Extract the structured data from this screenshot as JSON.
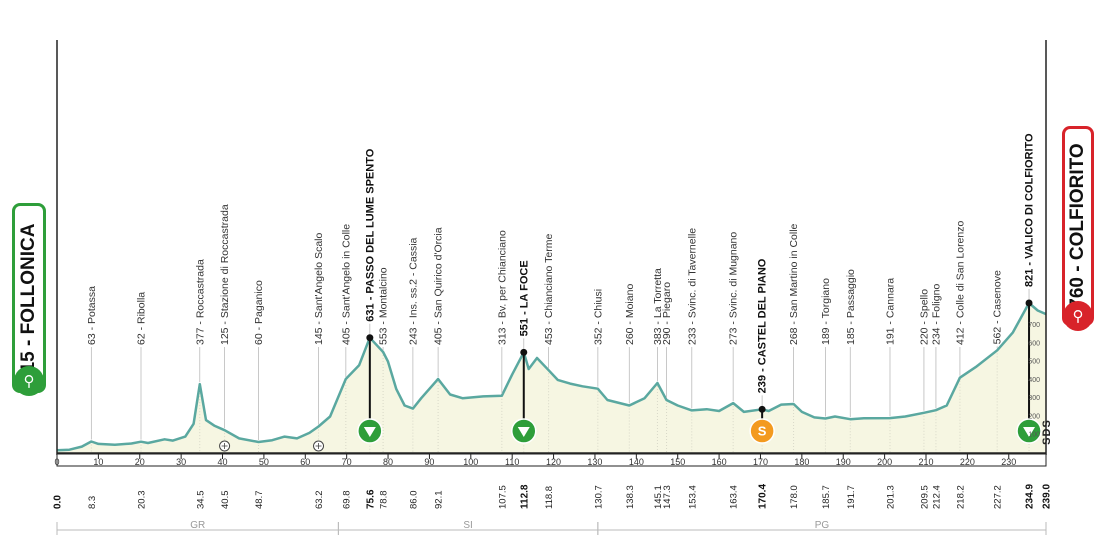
{
  "start": {
    "name": "15 - FOLLONICA",
    "color": "#2e9e3a"
  },
  "finish": {
    "name": "760 - COLFIORITO",
    "color": "#d8232a"
  },
  "profile_color": "#5aa8a0",
  "fill_color": "#f6f6e2",
  "region_labels": [
    "GR",
    "SI",
    "PG"
  ],
  "region_bounds_km": [
    0,
    68,
    130.7,
    239
  ],
  "scale_labels": [
    "700",
    "600",
    "500",
    "400",
    "300",
    "200",
    "100"
  ],
  "sds_label": "SDS",
  "km_ticks": [
    0,
    10,
    20,
    30,
    40,
    50,
    60,
    70,
    80,
    90,
    100,
    110,
    120,
    130,
    140,
    150,
    160,
    170,
    180,
    190,
    200,
    210,
    220,
    230
  ],
  "waypoints": [
    {
      "km": "0.0",
      "label": "",
      "bold": true
    },
    {
      "km": "8.3",
      "label": "63 - Potassa"
    },
    {
      "km": "20.3",
      "label": "62 - Ribolla"
    },
    {
      "km": "34.5",
      "label": "377 - Roccastrada"
    },
    {
      "km": "40.5",
      "label": "125 - Stazione di Roccastrada"
    },
    {
      "km": "48.7",
      "label": "60 - Paganico"
    },
    {
      "km": "63.2",
      "label": "145 - Sant'Angelo Scalo"
    },
    {
      "km": "69.8",
      "label": "405 - Sant'Angelo in Colle"
    },
    {
      "km": "75.6",
      "label": "631 - PASSO DEL LUME SPENTO",
      "bold": true,
      "marker": "gpm"
    },
    {
      "km": "78.8",
      "label": "553 - Montalcino"
    },
    {
      "km": "86.0",
      "label": "243 - Ins. ss.2 - Cassia"
    },
    {
      "km": "92.1",
      "label": "405 - San Quirico d'Orcia"
    },
    {
      "km": "107.5",
      "label": "313 - Bv. per Chianciano"
    },
    {
      "km": "112.8",
      "label": "551 - LA FOCE",
      "bold": true,
      "marker": "gpm"
    },
    {
      "km": "118.8",
      "label": "453 - Chianciano Terme"
    },
    {
      "km": "130.7",
      "label": "352 - Chiusi"
    },
    {
      "km": "138.3",
      "label": "260 - Moiano"
    },
    {
      "km": "145.1",
      "label": "383 - La Torretta"
    },
    {
      "km": "147.3",
      "label": "290 - Piegaro"
    },
    {
      "km": "153.4",
      "label": "233 - Svinc. di Tavernelle"
    },
    {
      "km": "163.4",
      "label": "273 - Svinc. di Mugnano"
    },
    {
      "km": "170.4",
      "label": "239 - CASTEL DEL PIANO",
      "bold": true,
      "marker": "sprint"
    },
    {
      "km": "178.0",
      "label": "268 - San Martino in Colle"
    },
    {
      "km": "185.7",
      "label": "189 - Torgiano"
    },
    {
      "km": "191.7",
      "label": "185 - Passaggio"
    },
    {
      "km": "201.3",
      "label": "191 - Cannara"
    },
    {
      "km": "209.5",
      "label": "220 - Spello"
    },
    {
      "km": "212.4",
      "label": "234 - Foligno"
    },
    {
      "km": "218.2",
      "label": "412 - Colle di San Lorenzo"
    },
    {
      "km": "227.2",
      "label": "562 - Casenove"
    },
    {
      "km": "234.9",
      "label": "821 - VALICO DI COLFIORITO",
      "bold": true,
      "marker": "gpm"
    },
    {
      "km": "239.0",
      "label": "",
      "bold": true
    }
  ],
  "elevation_profile": [
    [
      0,
      15
    ],
    [
      3,
      18
    ],
    [
      6,
      35
    ],
    [
      8.3,
      63
    ],
    [
      10,
      50
    ],
    [
      14,
      45
    ],
    [
      18,
      52
    ],
    [
      20.3,
      62
    ],
    [
      22,
      55
    ],
    [
      26,
      75
    ],
    [
      28,
      68
    ],
    [
      31,
      90
    ],
    [
      33,
      160
    ],
    [
      34.5,
      377
    ],
    [
      36,
      180
    ],
    [
      38,
      150
    ],
    [
      40.5,
      125
    ],
    [
      44,
      80
    ],
    [
      48.7,
      60
    ],
    [
      52,
      70
    ],
    [
      55,
      90
    ],
    [
      58,
      80
    ],
    [
      61,
      110
    ],
    [
      63.2,
      145
    ],
    [
      66,
      200
    ],
    [
      69.8,
      405
    ],
    [
      73,
      480
    ],
    [
      75.6,
      631
    ],
    [
      78.8,
      553
    ],
    [
      80,
      500
    ],
    [
      82,
      350
    ],
    [
      84,
      260
    ],
    [
      86,
      243
    ],
    [
      88,
      300
    ],
    [
      92.1,
      405
    ],
    [
      95,
      320
    ],
    [
      98,
      300
    ],
    [
      103,
      310
    ],
    [
      107.5,
      313
    ],
    [
      110,
      430
    ],
    [
      112.8,
      551
    ],
    [
      114,
      460
    ],
    [
      116,
      520
    ],
    [
      118.8,
      453
    ],
    [
      121,
      400
    ],
    [
      124,
      380
    ],
    [
      127,
      365
    ],
    [
      130.7,
      352
    ],
    [
      133,
      290
    ],
    [
      138.3,
      260
    ],
    [
      142,
      300
    ],
    [
      145.1,
      383
    ],
    [
      147.3,
      290
    ],
    [
      150,
      260
    ],
    [
      153.4,
      233
    ],
    [
      157,
      240
    ],
    [
      160,
      230
    ],
    [
      163.4,
      273
    ],
    [
      166,
      225
    ],
    [
      170.4,
      239
    ],
    [
      172,
      230
    ],
    [
      175,
      265
    ],
    [
      178,
      268
    ],
    [
      180,
      225
    ],
    [
      183,
      195
    ],
    [
      185.7,
      189
    ],
    [
      188,
      200
    ],
    [
      191.7,
      185
    ],
    [
      195,
      190
    ],
    [
      201.3,
      191
    ],
    [
      205,
      200
    ],
    [
      209.5,
      220
    ],
    [
      212.4,
      234
    ],
    [
      215,
      260
    ],
    [
      218.2,
      412
    ],
    [
      222,
      470
    ],
    [
      227.2,
      562
    ],
    [
      231,
      660
    ],
    [
      234.9,
      821
    ],
    [
      237,
      780
    ],
    [
      239,
      760
    ]
  ]
}
